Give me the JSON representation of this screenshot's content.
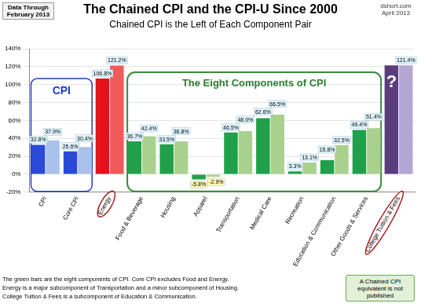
{
  "chart_data": {
    "type": "bar",
    "title": "The Chained CPI and the CPI-U Since 2000",
    "subtitle": "Chained CPI is the Left of Each Component Pair",
    "data_note": "Data Through February 2013",
    "credit": "dshort.com April 2013",
    "group_labels": [
      "CPI",
      "The Eight Components of CPI"
    ],
    "footnotes": [
      "The green bars are the eight components of CPI. Core CPI excludes Food and Energy.",
      "Energy is a major subcomponent of Transportation and a minor subcomponent of Housing.",
      "College Tuition & Fees is a subcomponent of Education & Communication."
    ],
    "callout": "A Chained CPI equivalent is not published",
    "categories": [
      "CPI",
      "Core CPI",
      "Energy",
      "Food & Beverage",
      "Housing",
      "Apparel",
      "Transportation",
      "Medical Care",
      "Recreation",
      "Education & Communication",
      "Other Goods & Services",
      "College Tuition & Fees"
    ],
    "series": [
      {
        "name": "Chained CPI",
        "colors": [
          "#2a4bd7",
          "#2a4bd7",
          "#e3121b",
          "#20a04a",
          "#20a04a",
          "#20a04a",
          "#20a04a",
          "#20a04a",
          "#20a04a",
          "#20a04a",
          "#20a04a",
          "#5b3d7e"
        ],
        "values": [
          32.8,
          25.6,
          106.8,
          36.7,
          33.5,
          -5.8,
          46.5,
          62.6,
          3.3,
          15.8,
          49.4,
          121.4
        ],
        "value_labels": [
          "32.8%",
          "25.6%",
          "106.8%",
          "36.7%",
          "33.5%",
          "-5.8%",
          "46.5%",
          "62.6%",
          "3.3%",
          "15.8%",
          "49.4%",
          "?"
        ]
      },
      {
        "name": "CPI-U",
        "colors": [
          "#a9c2ec",
          "#a9c2ec",
          "#f15a5a",
          "#a9d18e",
          "#a9d18e",
          "#a9d18e",
          "#a9d18e",
          "#a9d18e",
          "#a9d18e",
          "#a9d18e",
          "#a9d18e",
          "#b4a6d3"
        ],
        "values": [
          37.9,
          30.4,
          121.2,
          42.4,
          36.8,
          -2.9,
          48.0,
          66.5,
          13.1,
          32.5,
          51.4,
          121.4
        ],
        "value_labels": [
          "37.9%",
          "30.4%",
          "121.2%",
          "42.4%",
          "36.8%",
          "-2.9%",
          "48.0%",
          "66.5%",
          "13.1%",
          "32.5%",
          "51.4%",
          "121.4%"
        ]
      }
    ],
    "ylim": [
      -20,
      140
    ],
    "yticks": [
      {
        "value": -20,
        "label": "-20%"
      },
      {
        "value": 0,
        "label": "0%"
      },
      {
        "value": 20,
        "label": "20%"
      },
      {
        "value": 40,
        "label": "40%"
      },
      {
        "value": 60,
        "label": "60%"
      },
      {
        "value": 80,
        "label": "80%"
      },
      {
        "value": 100,
        "label": "100%"
      },
      {
        "value": 120,
        "label": "120%"
      },
      {
        "value": 140,
        "label": "140%"
      }
    ],
    "grid": true,
    "data_labels": true
  }
}
